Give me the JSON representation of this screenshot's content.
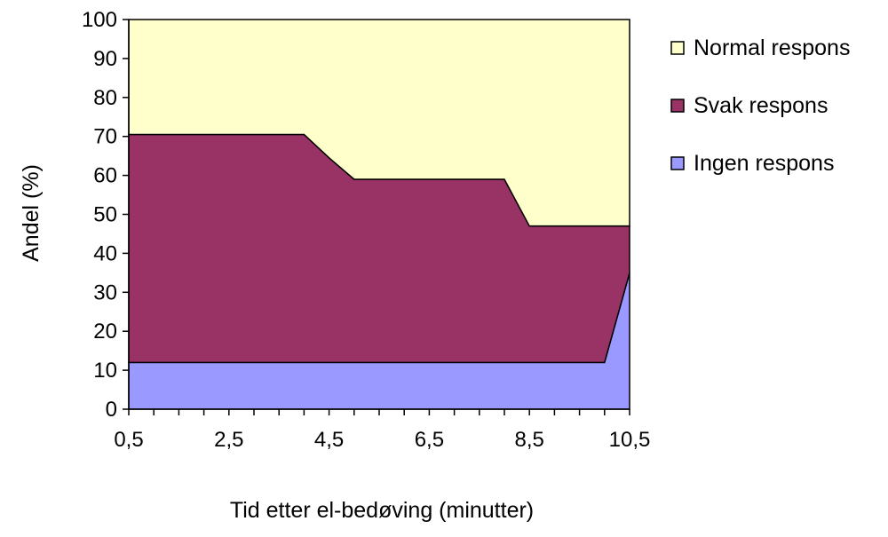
{
  "chart_data": {
    "type": "area",
    "stacked": true,
    "percent_stacked": true,
    "x": [
      0.5,
      1,
      1.5,
      2,
      2.5,
      3,
      3.5,
      4,
      4.5,
      5,
      5.5,
      6,
      6.5,
      7,
      7.5,
      8,
      8.5,
      9,
      9.5,
      10,
      10.5
    ],
    "series": [
      {
        "name": "Ingen respons",
        "color": "#9999ff",
        "values": [
          12,
          12,
          12,
          12,
          12,
          12,
          12,
          12,
          12,
          12,
          12,
          12,
          12,
          12,
          12,
          12,
          12,
          12,
          12,
          12,
          35
        ]
      },
      {
        "name": "Svak respons",
        "color": "#993366",
        "values": [
          58.5,
          58.5,
          58.5,
          58.5,
          58.5,
          58.5,
          58.5,
          58.5,
          52.5,
          47,
          47,
          47,
          47,
          47,
          47,
          47,
          35,
          35,
          35,
          35,
          12
        ]
      },
      {
        "name": "Normal respons",
        "color": "#ffffcc",
        "values": [
          29.5,
          29.5,
          29.5,
          29.5,
          29.5,
          29.5,
          29.5,
          29.5,
          35.5,
          41,
          41,
          41,
          41,
          41,
          41,
          41,
          53,
          53,
          53,
          53,
          53
        ]
      }
    ],
    "legend_order": [
      "Normal respons",
      "Svak respons",
      "Ingen respons"
    ],
    "legend_position": "right",
    "xlabel": "Tid etter el-bedøving (minutter)",
    "ylabel": "Andel (%)",
    "ylim": [
      0,
      100
    ],
    "yticks": [
      0,
      10,
      20,
      30,
      40,
      50,
      60,
      70,
      80,
      90,
      100
    ],
    "xtick_labels": [
      "0,5",
      "2,5",
      "4,5",
      "6,5",
      "8,5",
      "10,5"
    ],
    "grid": false
  }
}
